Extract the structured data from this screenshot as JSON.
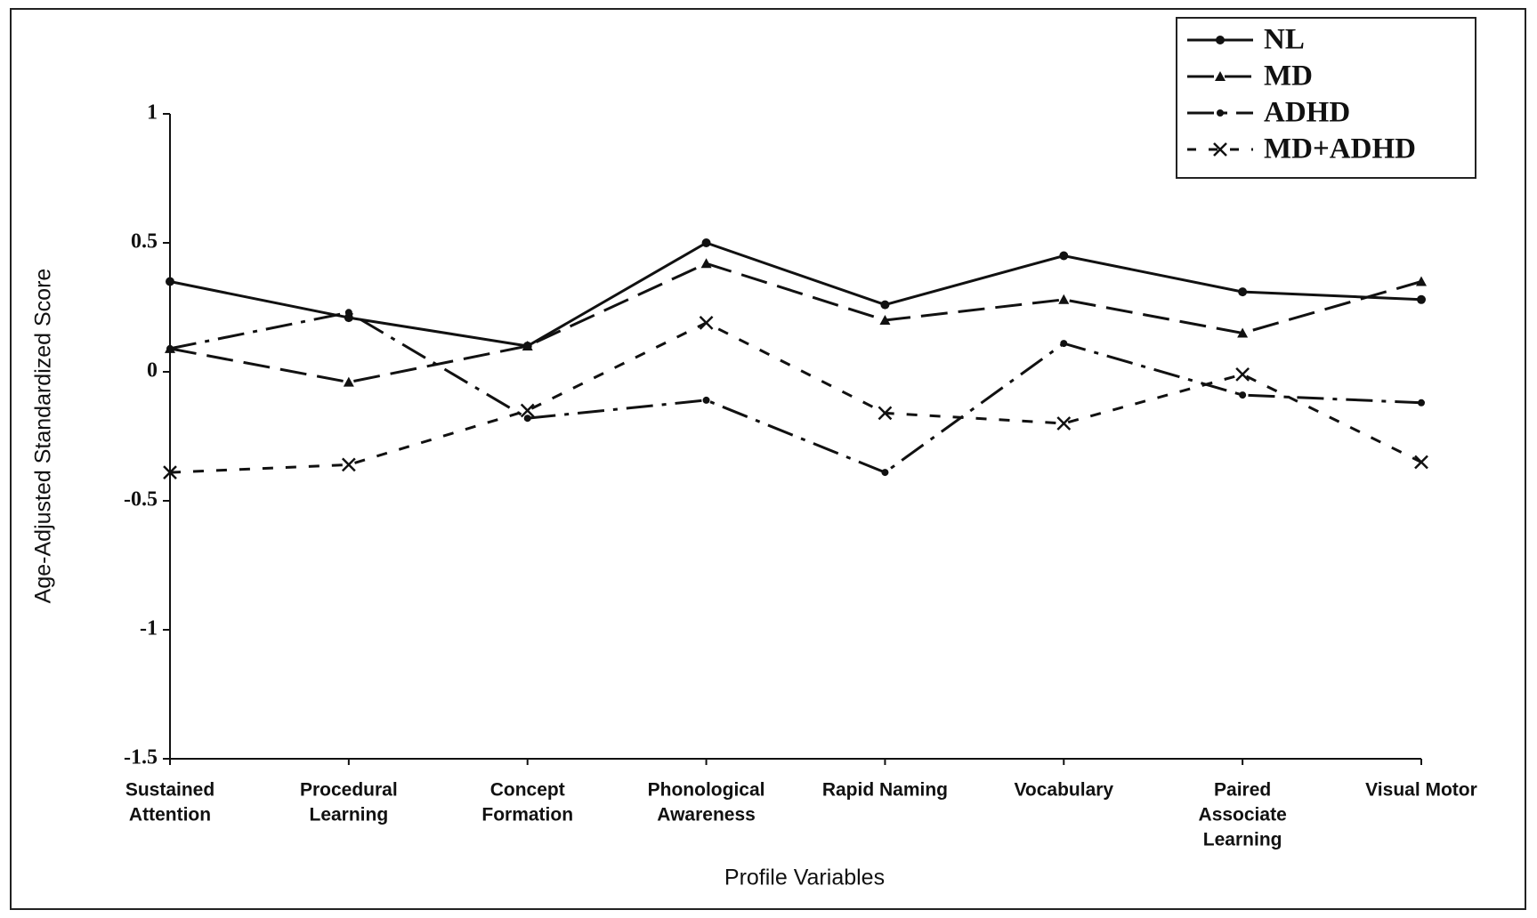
{
  "chart_data": {
    "type": "line",
    "x_label": "Profile Variables",
    "y_label": "Age-Adjusted Standardized Score",
    "categories": [
      [
        "Sustained",
        "Attention"
      ],
      [
        "Procedural",
        "Learning"
      ],
      [
        "Concept",
        "Formation"
      ],
      [
        "Phonological",
        "Awareness"
      ],
      [
        "Rapid Naming"
      ],
      [
        "Vocabulary"
      ],
      [
        "Paired",
        "Associate",
        "Learning"
      ],
      [
        "Visual Motor"
      ]
    ],
    "series": [
      {
        "name": "NL",
        "color": "#111111",
        "values": [
          0.35,
          0.21,
          0.1,
          0.5,
          0.26,
          0.45,
          0.31,
          0.28
        ]
      },
      {
        "name": "MD",
        "color": "#111111",
        "values": [
          0.09,
          -0.04,
          0.1,
          0.42,
          0.2,
          0.28,
          0.15,
          0.35
        ]
      },
      {
        "name": "ADHD",
        "color": "#111111",
        "values": [
          0.09,
          0.23,
          -0.18,
          -0.11,
          -0.39,
          0.11,
          -0.09,
          -0.12
        ]
      },
      {
        "name": "MD+ADHD",
        "color": "#111111",
        "values": [
          -0.39,
          -0.36,
          -0.15,
          0.19,
          -0.16,
          -0.2,
          -0.01,
          -0.35
        ]
      }
    ],
    "ylim": [
      -1.5,
      1
    ],
    "yticks": [
      1,
      0.5,
      0,
      -0.5,
      -1,
      -1.5
    ],
    "legend": "upper right"
  }
}
